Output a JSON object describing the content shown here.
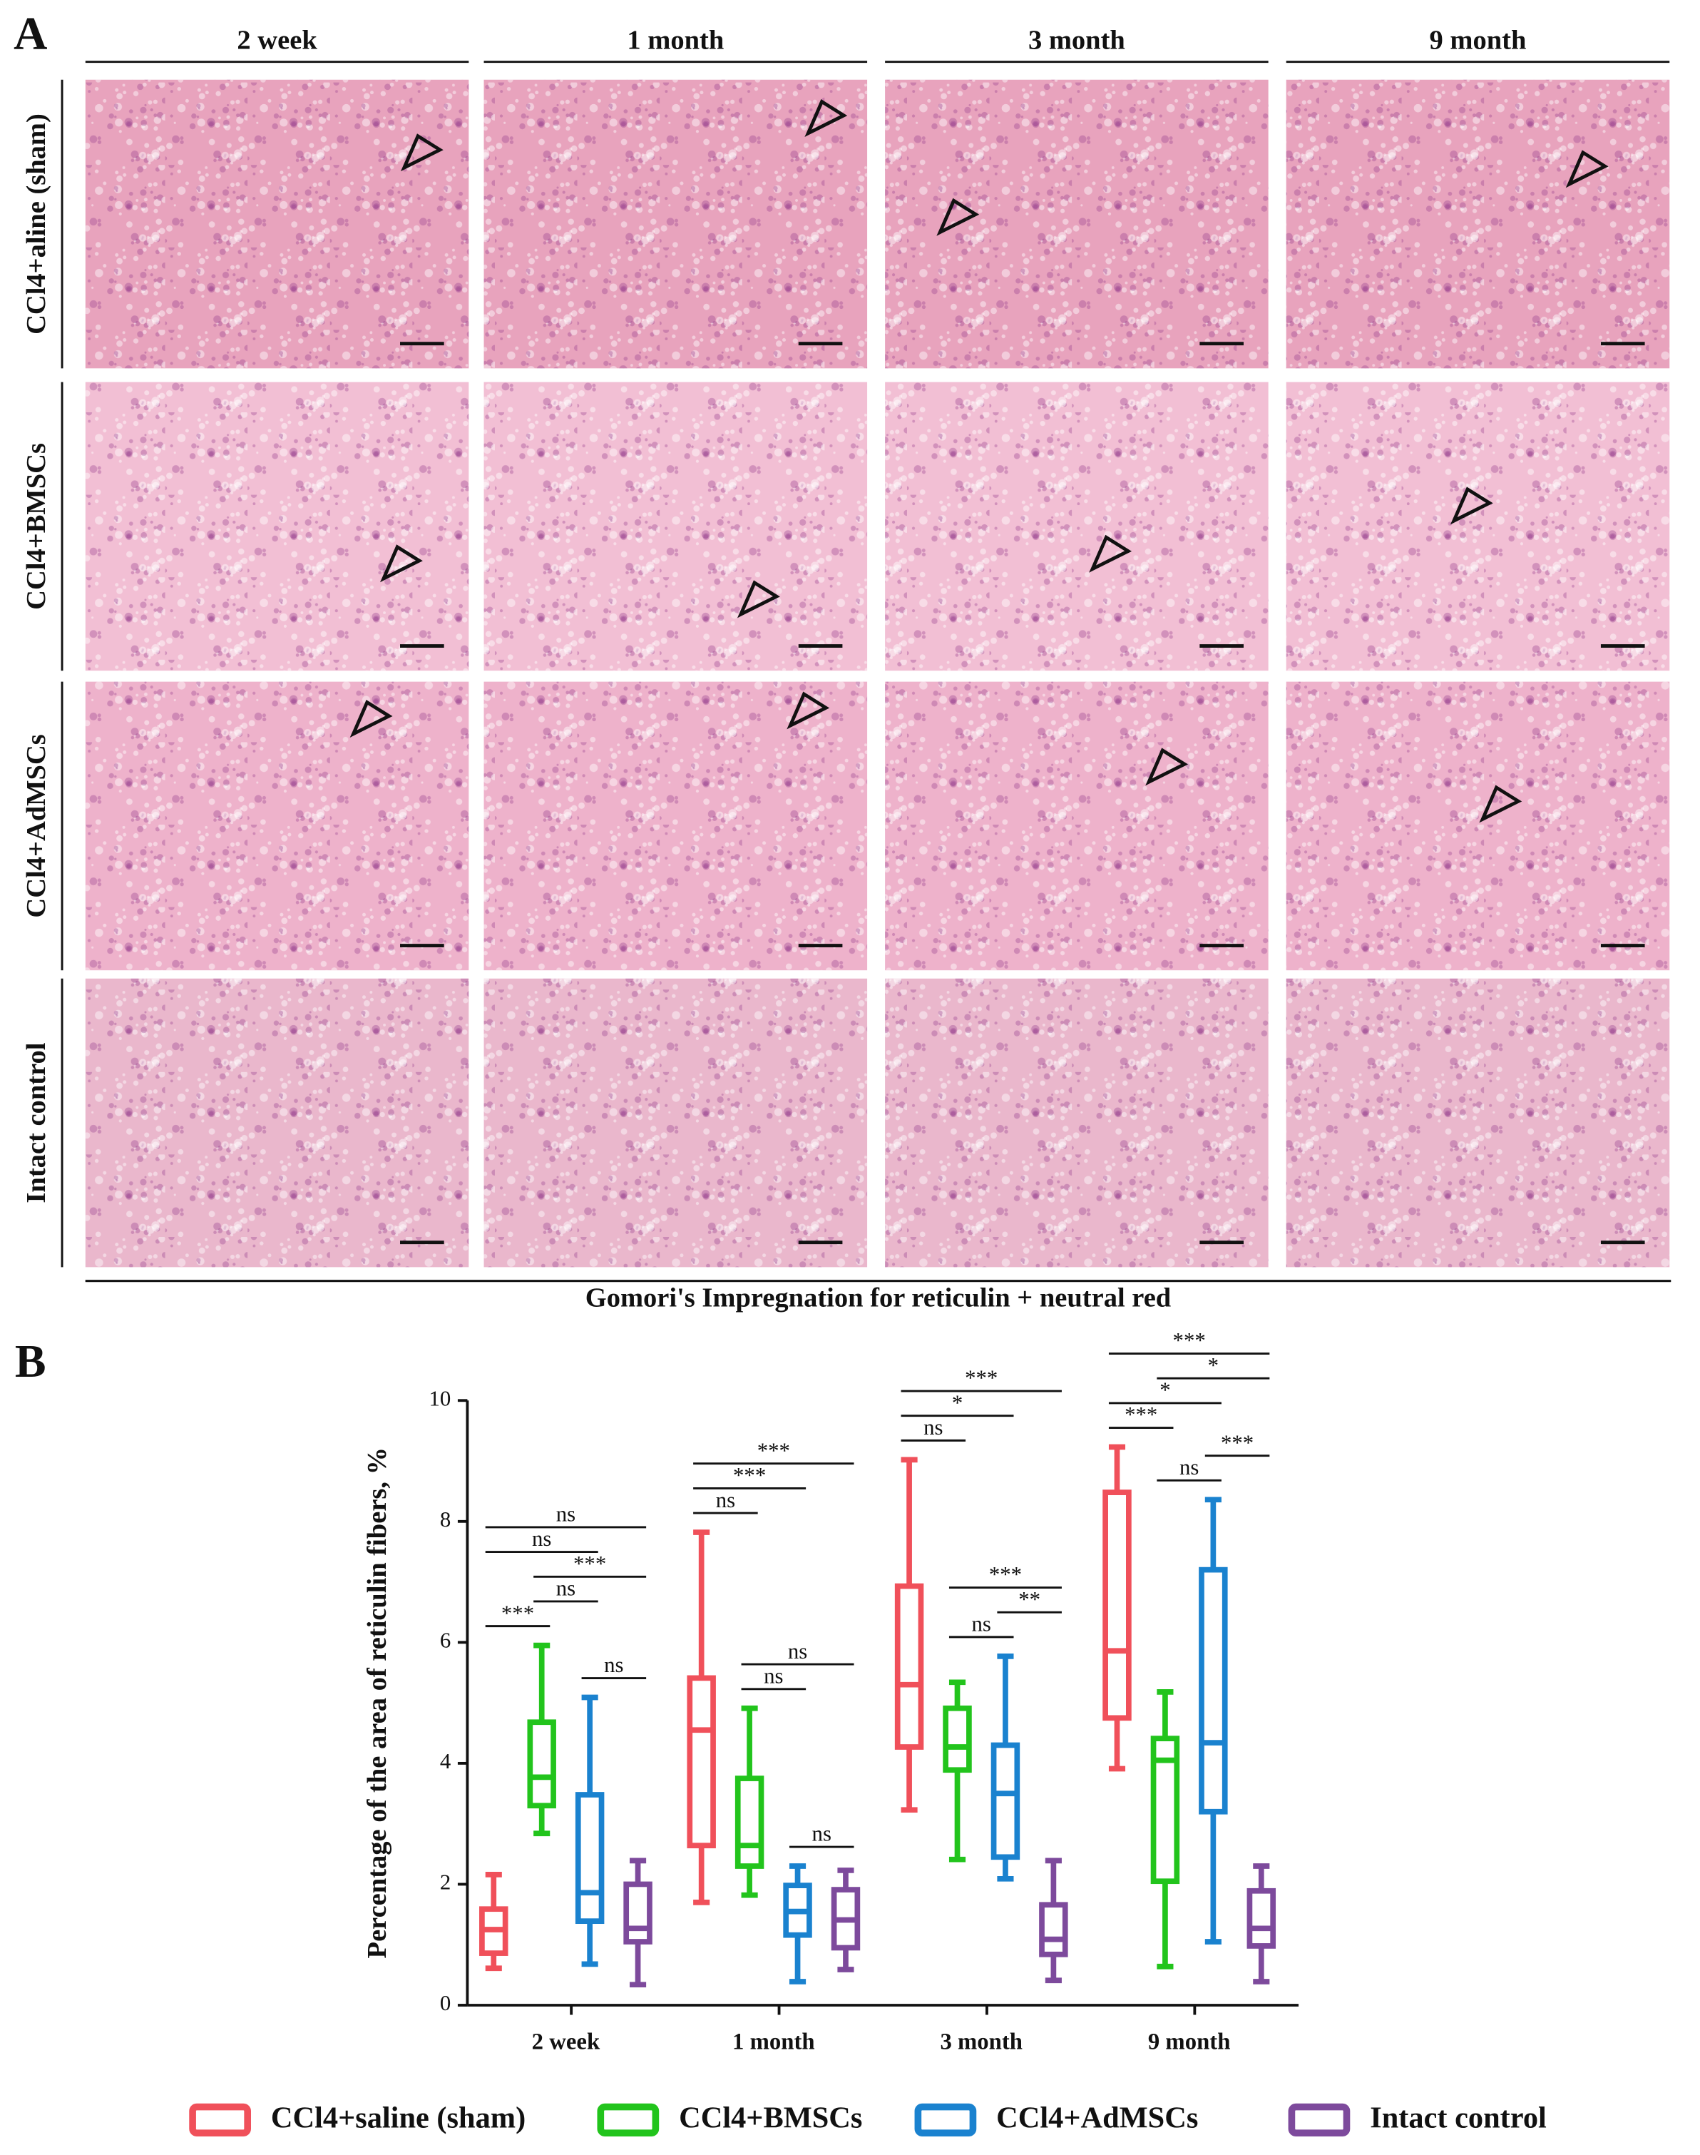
{
  "panel_labels": [
    "A",
    "B"
  ],
  "panel_a": {
    "columns": [
      "2 week",
      "1 month",
      "3 month",
      "9 month"
    ],
    "rows": [
      "CCl4+aline (sham)",
      "CCl4+BMSCs",
      "CCl4+AdMSCs",
      "Intact control"
    ],
    "caption": "Gomori's Impregnation for reticulin + neutral red"
  },
  "chart_data": {
    "type": "box",
    "ylabel": "Percentage of the area of reticulin fibers, %",
    "categories": [
      "2 week",
      "1 month",
      "3 month",
      "9 month"
    ],
    "ylim": [
      0,
      10
    ],
    "yticks": [
      0,
      2,
      4,
      6,
      8,
      10
    ],
    "legend": "bottom",
    "series": [
      {
        "name": "CCl4+saline (sham)",
        "color": "#f0505a",
        "values": [
          {
            "min": 0.61,
            "q1": 0.86,
            "median": 1.25,
            "q3": 1.59,
            "max": 2.16
          },
          {
            "min": 1.7,
            "q1": 2.64,
            "median": 4.55,
            "q3": 5.41,
            "max": 7.82
          },
          {
            "min": 3.23,
            "q1": 4.27,
            "median": 5.3,
            "q3": 6.93,
            "max": 9.02
          },
          {
            "min": 3.91,
            "q1": 4.75,
            "median": 5.86,
            "q3": 8.48,
            "max": 9.23
          }
        ]
      },
      {
        "name": "CCl4+BMSCs",
        "color": "#22c41c",
        "values": [
          {
            "min": 2.84,
            "q1": 3.3,
            "median": 3.77,
            "q3": 4.68,
            "max": 5.95
          },
          {
            "min": 1.82,
            "q1": 2.3,
            "median": 2.64,
            "q3": 3.75,
            "max": 4.91
          },
          {
            "min": 2.41,
            "q1": 3.89,
            "median": 4.27,
            "q3": 4.91,
            "max": 5.34
          },
          {
            "min": 0.64,
            "q1": 2.05,
            "median": 4.05,
            "q3": 4.41,
            "max": 5.18
          }
        ]
      },
      {
        "name": "CCl4+AdMSCs",
        "color": "#1a82cf",
        "values": [
          {
            "min": 0.68,
            "q1": 1.39,
            "median": 1.86,
            "q3": 3.48,
            "max": 5.09
          },
          {
            "min": 0.39,
            "q1": 1.16,
            "median": 1.55,
            "q3": 1.98,
            "max": 2.3
          },
          {
            "min": 2.09,
            "q1": 2.45,
            "median": 3.5,
            "q3": 4.3,
            "max": 5.77
          },
          {
            "min": 1.05,
            "q1": 3.2,
            "median": 4.34,
            "q3": 7.2,
            "max": 8.36
          }
        ]
      },
      {
        "name": "Intact control",
        "color": "#7d4a9c",
        "values": [
          {
            "min": 0.34,
            "q1": 1.05,
            "median": 1.27,
            "q3": 2.0,
            "max": 2.39
          },
          {
            "min": 0.59,
            "q1": 0.95,
            "median": 1.41,
            "q3": 1.91,
            "max": 2.23
          },
          {
            "min": 0.41,
            "q1": 0.84,
            "median": 1.09,
            "q3": 1.66,
            "max": 2.39
          },
          {
            "min": 0.39,
            "q1": 0.98,
            "median": 1.27,
            "q3": 1.89,
            "max": 2.3
          }
        ]
      }
    ],
    "comparisons": [
      [
        {
          "pair": [
            0,
            1
          ],
          "label": "***"
        },
        {
          "pair": [
            1,
            2
          ],
          "label": "ns"
        },
        {
          "pair": [
            1,
            3
          ],
          "label": "***"
        },
        {
          "pair": [
            0,
            2
          ],
          "label": "ns"
        },
        {
          "pair": [
            0,
            3
          ],
          "label": "ns"
        },
        {
          "pair": [
            2,
            3
          ],
          "label": "ns"
        }
      ],
      [
        {
          "pair": [
            0,
            1
          ],
          "label": "ns"
        },
        {
          "pair": [
            0,
            2
          ],
          "label": "***"
        },
        {
          "pair": [
            0,
            3
          ],
          "label": "***"
        },
        {
          "pair": [
            1,
            2
          ],
          "label": "ns"
        },
        {
          "pair": [
            1,
            3
          ],
          "label": "ns"
        },
        {
          "pair": [
            2,
            3
          ],
          "label": "ns"
        }
      ],
      [
        {
          "pair": [
            0,
            1
          ],
          "label": "ns"
        },
        {
          "pair": [
            0,
            2
          ],
          "label": "*"
        },
        {
          "pair": [
            0,
            3
          ],
          "label": "***"
        },
        {
          "pair": [
            1,
            2
          ],
          "label": "ns"
        },
        {
          "pair": [
            1,
            3
          ],
          "label": "***"
        },
        {
          "pair": [
            2,
            3
          ],
          "label": "**"
        }
      ],
      [
        {
          "pair": [
            0,
            1
          ],
          "label": "***"
        },
        {
          "pair": [
            0,
            2
          ],
          "label": "*"
        },
        {
          "pair": [
            0,
            3
          ],
          "label": "***"
        },
        {
          "pair": [
            1,
            2
          ],
          "label": "ns"
        },
        {
          "pair": [
            1,
            3
          ],
          "label": "*"
        },
        {
          "pair": [
            2,
            3
          ],
          "label": "***"
        }
      ]
    ]
  }
}
